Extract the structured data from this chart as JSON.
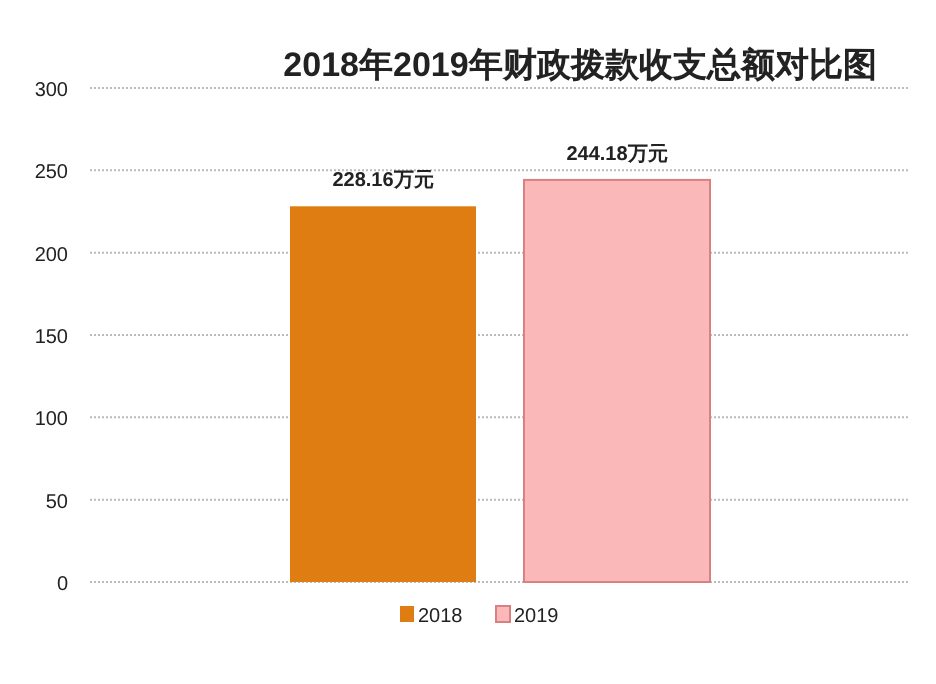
{
  "chart_data": {
    "type": "bar",
    "title": "2018年2019年财政拨款收支总额对比图",
    "categories": [
      null
    ],
    "series": [
      {
        "name": "2018",
        "color": "#e07d12",
        "values": [
          228.16
        ],
        "value_labels": [
          "228.16万元"
        ]
      },
      {
        "name": "2019",
        "color": "#fbb8b8",
        "values": [
          244.18
        ],
        "value_labels": [
          "244.18万元"
        ]
      }
    ],
    "ylim": [
      0,
      300
    ],
    "yticks": [
      0,
      50,
      100,
      150,
      200,
      250,
      300
    ],
    "grid": "y",
    "legend": "bottom"
  }
}
